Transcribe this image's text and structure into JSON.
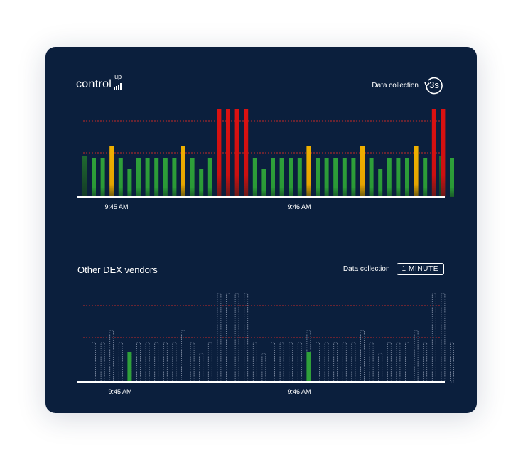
{
  "header": {
    "logo_text": "control",
    "logo_superscript": "up",
    "data_collection_label": "Data collection",
    "refresh_interval": "3s"
  },
  "comparison": {
    "title": "Other DEX vendors",
    "data_collection_label": "Data collection",
    "interval": "1 MINUTE"
  },
  "colors": {
    "background": "#0b1f3d",
    "green": "#2fa03a",
    "yellow": "#f0b000",
    "red": "#dd1111",
    "threshold_line": "#c62828"
  },
  "chart_data": [
    {
      "type": "bar",
      "series": [
        {
          "values": [
            3,
            3,
            4,
            3,
            2,
            3,
            3,
            3,
            3,
            3,
            4,
            3,
            2,
            3,
            5,
            5,
            5,
            5,
            3,
            2,
            3,
            3,
            3,
            3,
            4,
            3,
            3,
            3,
            3,
            3,
            4,
            3,
            2,
            3,
            3,
            3,
            4,
            3,
            5,
            5,
            3
          ]
        }
      ],
      "x_ticks": [
        "9:45 AM",
        "9:46 AM"
      ],
      "note_scale": "1=level1, 3=green, 4=yellow, 5=red"
    },
    {
      "type": "bar",
      "series": [
        {
          "values": [
            3,
            3,
            4,
            3,
            2,
            3,
            3,
            3,
            3,
            3,
            4,
            3,
            2,
            3,
            5,
            5,
            5,
            5,
            3,
            2,
            3,
            3,
            3,
            3,
            4,
            3,
            3,
            3,
            3,
            3,
            4,
            3,
            2,
            3,
            3,
            3,
            4,
            3,
            5,
            5,
            3
          ]
        }
      ],
      "highlighted_indices": [
        4,
        24
      ],
      "x_ticks": [
        "9:45 AM",
        "9:46 AM"
      ]
    }
  ]
}
